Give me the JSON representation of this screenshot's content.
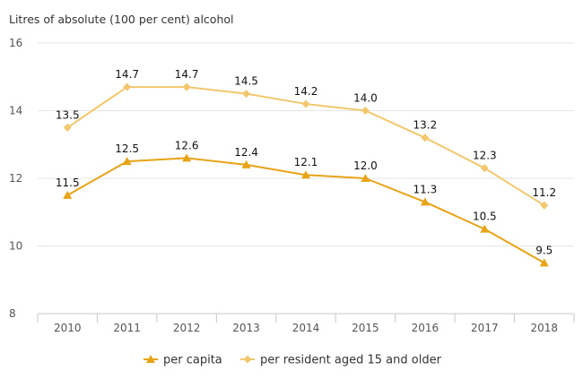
{
  "chart_data": {
    "type": "line",
    "title": "",
    "ylabel": "Litres of absolute (100 per cent) alcohol",
    "xlabel": "",
    "categories": [
      "2010",
      "2011",
      "2012",
      "2013",
      "2014",
      "2015",
      "2016",
      "2017",
      "2018"
    ],
    "ylim": [
      8,
      16
    ],
    "yticks": [
      8,
      10,
      12,
      14,
      16
    ],
    "grid": true,
    "legend_position": "bottom",
    "series": [
      {
        "name": "per capita",
        "values": [
          11.5,
          12.5,
          12.6,
          12.4,
          12.1,
          12.0,
          11.3,
          10.5,
          9.5
        ],
        "labels": [
          "11.5",
          "12.5",
          "12.6",
          "12.4",
          "12.1",
          "12.0",
          "11.3",
          "10.5",
          "9.5"
        ],
        "color": "#e8a317",
        "marker": "triangle"
      },
      {
        "name": "per resident aged 15 and older",
        "values": [
          13.5,
          14.7,
          14.7,
          14.5,
          14.2,
          14.0,
          13.2,
          12.3,
          11.2
        ],
        "labels": [
          "13.5",
          "14.7",
          "14.7",
          "14.5",
          "14.2",
          "14.0",
          "13.2",
          "12.3",
          "11.2"
        ],
        "color": "#f2c76e",
        "marker": "diamond"
      }
    ]
  }
}
